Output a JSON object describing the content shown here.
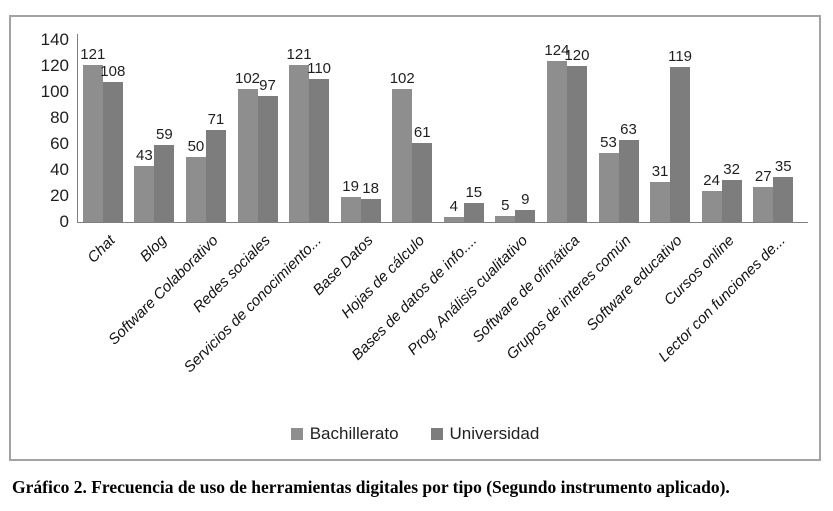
{
  "figure": {
    "caption": "Gráfico 2. Frecuencia de uso de herramientas digitales por tipo (Segundo instrumento aplicado)."
  },
  "chart_data": {
    "type": "bar",
    "title": "",
    "xlabel": "",
    "ylabel": "",
    "categories": [
      "Chat",
      "Blog",
      "Software Colaborativo",
      "Redes sociales",
      "Servicios de conocimiento...",
      "Base Datos",
      "Hojas de cálculo",
      "Bases de datos de info....",
      "Prog. Análisis cualitativo",
      "Software de ofimática",
      "Grupos de interes común",
      "Software educativo",
      "Cursos online",
      "Lector con funciones de..."
    ],
    "series": [
      {
        "name": "Bachillerato",
        "color": "#8e8e8e",
        "values": [
          121,
          43,
          50,
          102,
          121,
          19,
          102,
          4,
          5,
          124,
          53,
          31,
          24,
          27
        ]
      },
      {
        "name": "Universidad",
        "color": "#7d7d7d",
        "values": [
          108,
          59,
          71,
          97,
          110,
          18,
          61,
          15,
          9,
          120,
          63,
          119,
          32,
          35
        ]
      }
    ],
    "ylim": [
      0,
      140
    ],
    "yticks": [
      0,
      20,
      40,
      60,
      80,
      100,
      120,
      140
    ],
    "grid": false,
    "legend_position": "bottom",
    "data_labels": true,
    "axis_color": "#808080"
  }
}
